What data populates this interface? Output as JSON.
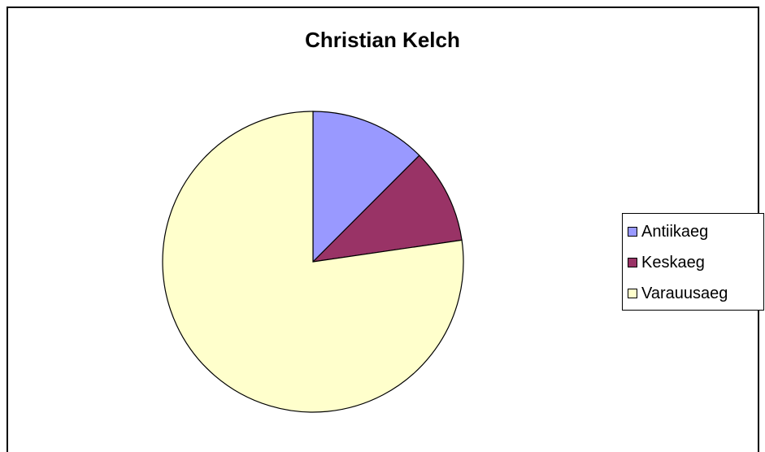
{
  "chart_data": {
    "type": "pie",
    "title": "Christian Kelch",
    "categories": [
      "Antiikaeg",
      "Keskaeg",
      "Varauusaeg"
    ],
    "values": [
      12.5,
      10.2,
      77.3
    ],
    "colors": [
      "#9999FF",
      "#993366",
      "#FFFFCC"
    ],
    "legend_position": "right",
    "start_angle_deg": 0,
    "direction": "clockwise"
  }
}
